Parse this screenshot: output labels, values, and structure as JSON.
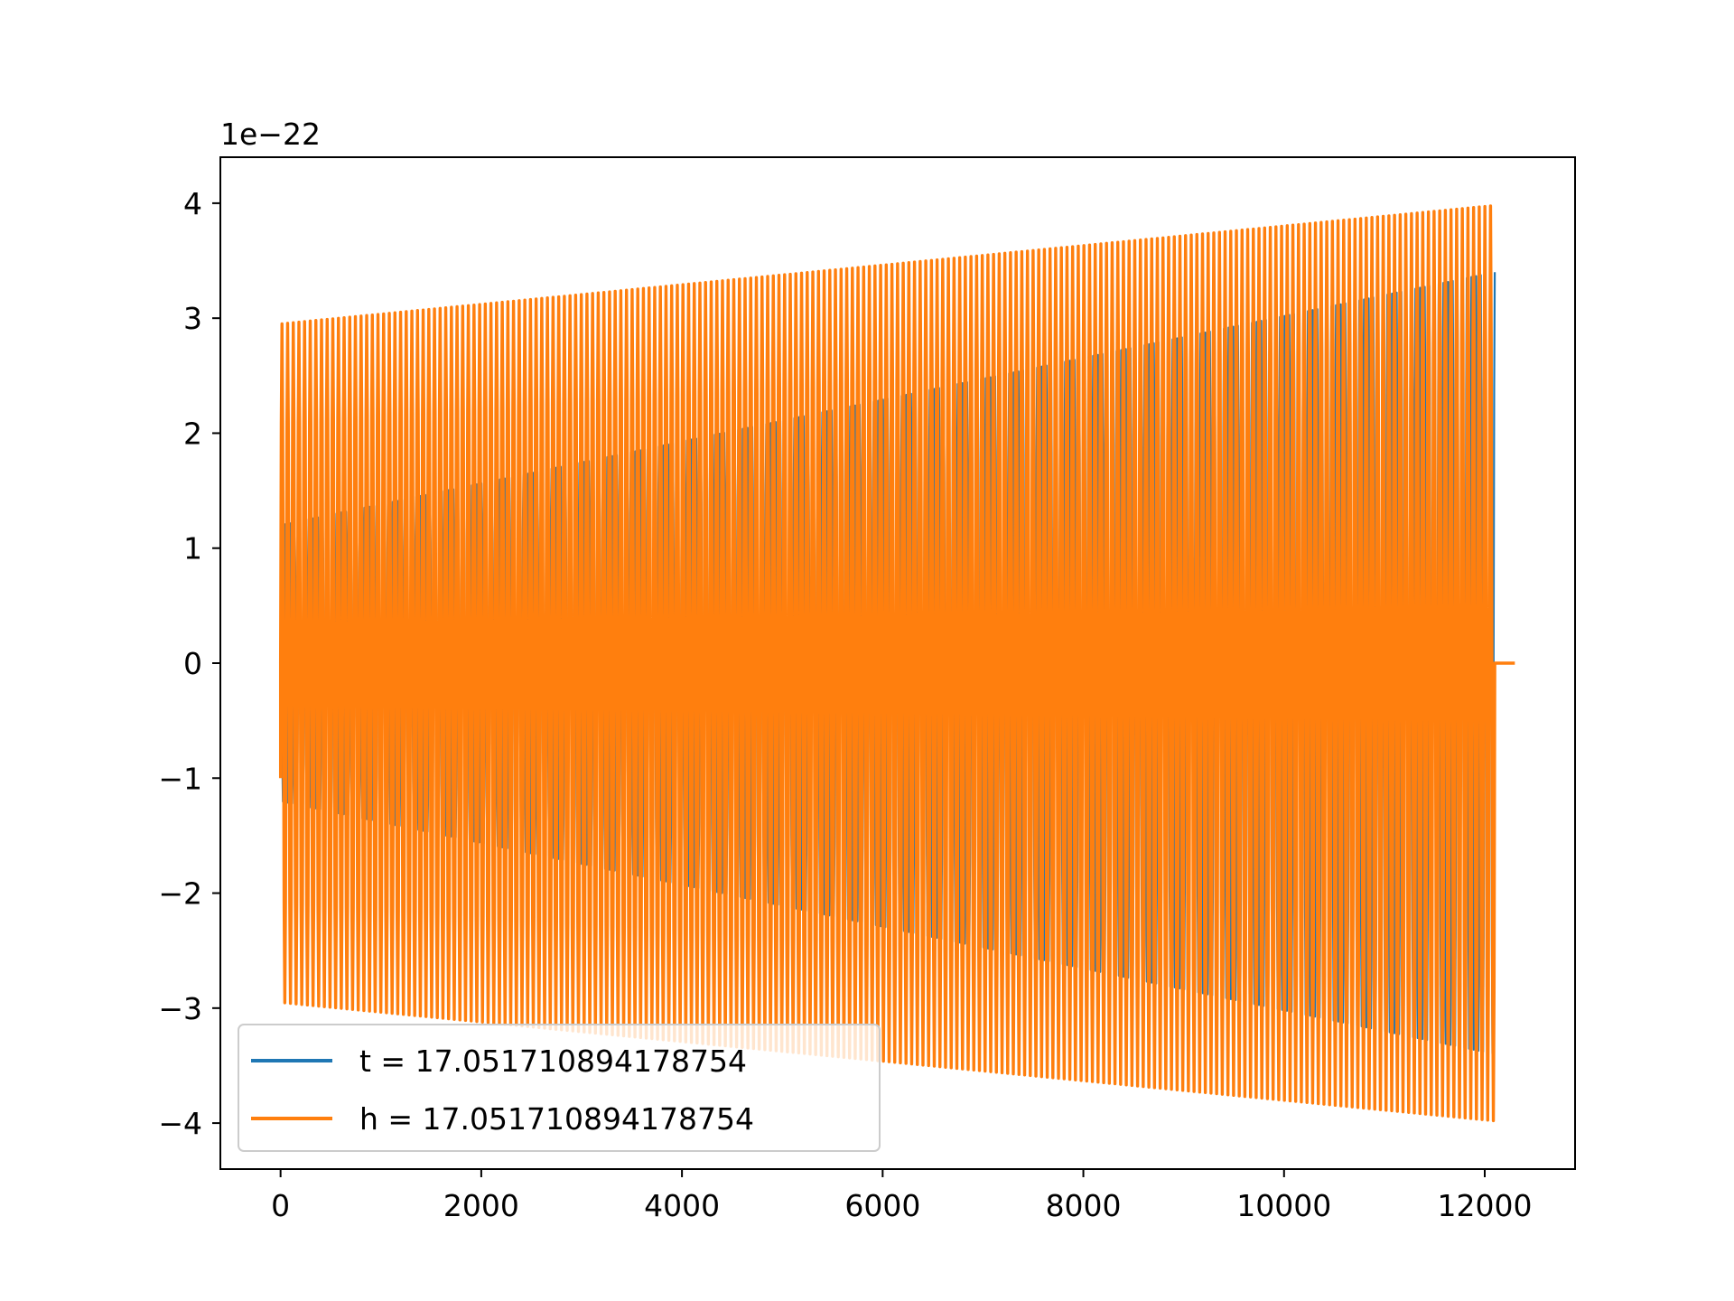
{
  "chart_data": {
    "type": "line",
    "title": "",
    "xlabel": "",
    "ylabel": "",
    "y_offset_label": "1e−22",
    "y_scale_factor": 1e-22,
    "xlim": [
      -600,
      12900
    ],
    "ylim": [
      -4.4,
      4.4
    ],
    "xticks": [
      0,
      2000,
      4000,
      6000,
      8000,
      10000,
      12000
    ],
    "xtick_labels": [
      "0",
      "2000",
      "4000",
      "6000",
      "8000",
      "10000",
      "12000"
    ],
    "yticks": [
      -4,
      -3,
      -2,
      -1,
      0,
      1,
      2,
      3,
      4
    ],
    "ytick_labels": [
      "−4",
      "−3",
      "−2",
      "−1",
      "0",
      "1",
      "2",
      "3",
      "4"
    ],
    "grid": false,
    "legend_position": "lower-left",
    "series": [
      {
        "name": "t = 17.051710894178754",
        "color": "#1f77b4",
        "x_start": 0,
        "x_end": 12100,
        "amplitude_start": 1.2,
        "amplitude_end": 3.4,
        "initial_value": 1.45,
        "cycles": 260
      },
      {
        "name": "h = 17.051710894178754",
        "color": "#ff7f0e",
        "x_start": 0,
        "x_end": 12100,
        "amplitude_start": 2.95,
        "amplitude_end": 3.98,
        "initial_value": -1.0,
        "cycles": 215,
        "tail_x_end": 12300,
        "tail_value": 0
      }
    ]
  }
}
